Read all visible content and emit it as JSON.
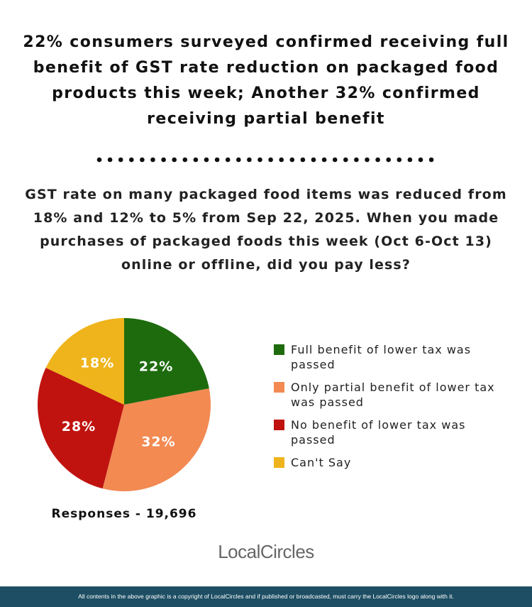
{
  "chart_data": {
    "type": "pie",
    "title": "22% consumers surveyed confirmed receiving full benefit of GST rate reduction on packaged food products this week; Another 32% confirmed receiving partial benefit",
    "subtitle": "GST rate on many packaged food items was reduced from 18% and 12% to 5% from Sep 22, 2025. When you made purchases of packaged foods this week (Oct 6-Oct 13) online or offline, did you pay less?",
    "categories": [
      "Full benefit of lower tax was passed",
      "Only partial benefit of lower tax was passed",
      "No benefit of lower tax was passed",
      "Can't Say"
    ],
    "values": [
      22,
      32,
      28,
      18
    ],
    "value_labels": [
      "22%",
      "32%",
      "28%",
      "18%"
    ],
    "colors": [
      "#1e6b0e",
      "#f28a52",
      "#c0130f",
      "#efb41b"
    ],
    "annotation": "Responses - 19,696"
  },
  "logo": "LocalCircles",
  "footer": "All contents in the above graphic is a copyright of LocalCircles and if published or broadcasted, must carry the LocalCircles logo along with it."
}
